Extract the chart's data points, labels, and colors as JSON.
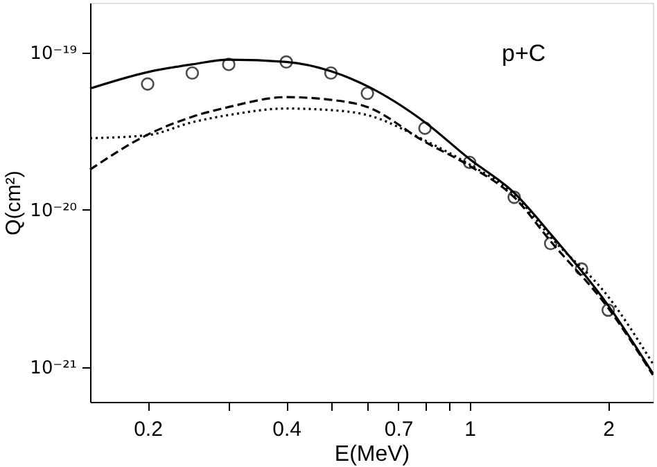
{
  "chart_data": {
    "type": "line",
    "xlabel": "E(MeV)",
    "ylabel": "Q(cm²)",
    "annotations": [
      "p+C"
    ],
    "log": "xy",
    "grid": false,
    "xlim": [
      0.15,
      2.5
    ],
    "xticks": [
      0.2,
      {
        "value": 0.3,
        "label": null
      },
      0.4,
      {
        "value": 0.5,
        "label": null
      },
      {
        "value": 0.6,
        "label": null
      },
      0.7,
      {
        "value": 0.8,
        "label": null
      },
      {
        "value": 0.9,
        "label": null
      },
      1,
      2
    ],
    "ylim": [
      6e-22,
      2.07e-19
    ],
    "yticks": [
      {
        "value": 1e-21,
        "label": "10⁻²¹"
      },
      {
        "value": 1e-20,
        "label": "10⁻²⁰"
      },
      {
        "value": 1e-19,
        "label": "10⁻¹⁹"
      }
    ],
    "x": [
      0.15,
      0.2,
      0.25,
      0.3,
      0.4,
      0.5,
      0.6,
      0.8,
      1.0,
      1.25,
      1.5,
      2.0,
      2.5
    ],
    "series": [
      {
        "color": "#000000",
        "line_style": "solid",
        "values": [
          5.9e-20,
          7.5e-20,
          8.4e-20,
          9e-20,
          8.7e-20,
          7.6e-20,
          6.1e-20,
          3.6e-20,
          2.1e-20,
          1.28e-20,
          7e-21,
          2.46e-21,
          9.1e-22
        ]
      },
      {
        "color": "#000000",
        "line_style": "dashed",
        "values": [
          1.8e-20,
          3e-20,
          3.9e-20,
          4.5e-20,
          5.2e-20,
          5e-20,
          4.5e-20,
          2.7e-20,
          1.9e-20,
          1.2e-20,
          6.3e-21,
          2.37e-21,
          8.9e-22
        ]
      },
      {
        "color": "#000000",
        "line_style": "dotted",
        "values": [
          2.85e-20,
          2.98e-20,
          3.6e-20,
          4e-20,
          4.4e-20,
          4.3e-20,
          4e-20,
          2.76e-20,
          1.94e-20,
          1.25e-20,
          6.7e-21,
          2.8e-21,
          1.05e-21
        ]
      },
      {
        "type": "scatter",
        "color": "#000000",
        "marker": "circle",
        "x": [
          0.2,
          0.25,
          0.3,
          0.4,
          0.5,
          0.6,
          0.8,
          1.0,
          1.25,
          1.5,
          1.75,
          2.0
        ],
        "values": [
          6.3e-20,
          7.4e-20,
          8.4e-20,
          8.7e-20,
          7.4e-20,
          5.5e-20,
          3.3e-20,
          2e-20,
          1.2e-20,
          6.1e-21,
          4.2e-21,
          2.3e-21
        ]
      }
    ]
  }
}
